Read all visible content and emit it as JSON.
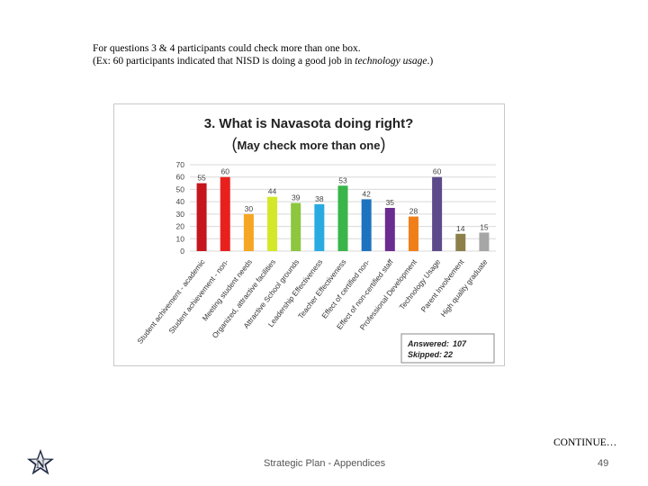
{
  "intro": {
    "line1": "For questions 3 & 4 participants could check more than one box.",
    "line2_prefix": "(Ex: 60 participants indicated that NISD is doing a good job in ",
    "line2_em": "technology usage",
    "line2_suffix": ".)"
  },
  "chart_data": {
    "type": "bar",
    "title": "3. What is Navasota doing right?",
    "subtitle": "May check more than one",
    "categories": [
      "Student achivement - academic",
      "Student achievement - non-",
      "Meeting student needs",
      "Organized, attractive facilities",
      "Attractive School grounds",
      "Leadership Effectiveness",
      "Teacher Effectiveness",
      "Effect of certified non-",
      "Effect of non-certified staff",
      "Professional Development",
      "Technology Usage",
      "Parent Involvement",
      "High quality graduate"
    ],
    "values": [
      55,
      60,
      30,
      44,
      39,
      38,
      53,
      42,
      35,
      28,
      60,
      14,
      15
    ],
    "colors": [
      "#c4161c",
      "#e8211d",
      "#f5a623",
      "#d4e829",
      "#8dc63f",
      "#29abe2",
      "#39b54a",
      "#1e73be",
      "#6a2c91",
      "#f07f1a",
      "#5d4a8a",
      "#8c7f4a",
      "#a6a6a6"
    ],
    "yticks": [
      0,
      10,
      20,
      30,
      40,
      50,
      60,
      70
    ],
    "ylim": [
      0,
      70
    ],
    "grid": true,
    "legend_box": {
      "answered_label": "Answered:",
      "answered_value": "107",
      "skipped_label": "Skipped:",
      "skipped_value": "22"
    }
  },
  "footer": {
    "continue": "CONTINUE…",
    "text": "Strategic Plan - Appendices",
    "page": "49"
  },
  "logo": {
    "icon": "star-n-logo-icon",
    "color": "#1f2a44"
  }
}
